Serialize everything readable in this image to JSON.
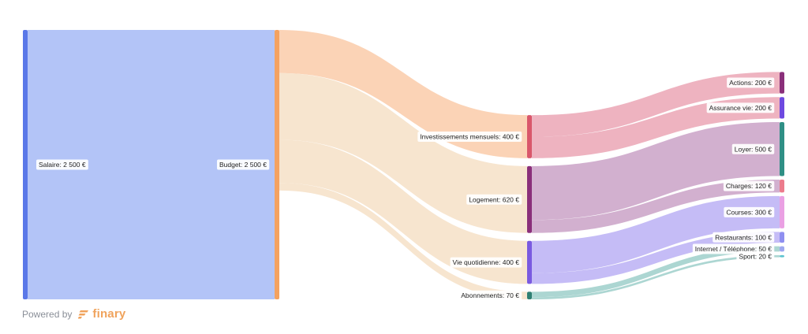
{
  "footer": {
    "powered_by": "Powered by",
    "brand": "finary"
  },
  "chart_data": {
    "type": "sankey",
    "currency": "€",
    "nodes": [
      {
        "id": "salaire",
        "label": "Salaire: 2 500 €",
        "value": 2500,
        "column": 0,
        "color": "#5a78e8"
      },
      {
        "id": "budget",
        "label": "Budget: 2 500 €",
        "value": 2500,
        "column": 1,
        "color": "#f4a261"
      },
      {
        "id": "invest",
        "label": "Investissements mensuels: 400 €",
        "value": 400,
        "column": 2,
        "color": "#d9576b"
      },
      {
        "id": "logement",
        "label": "Logement: 620 €",
        "value": 620,
        "column": 2,
        "color": "#8a2f7a"
      },
      {
        "id": "vie",
        "label": "Vie quotidienne: 400 €",
        "value": 400,
        "column": 2,
        "color": "#7a5ae0"
      },
      {
        "id": "abos",
        "label": "Abonnements: 70 €",
        "value": 70,
        "column": 2,
        "color": "#2f7f73"
      },
      {
        "id": "actions",
        "label": "Actions: 200 €",
        "value": 200,
        "column": 3,
        "color": "#8a2f7a"
      },
      {
        "id": "assurance",
        "label": "Assurance vie: 200 €",
        "value": 200,
        "column": 3,
        "color": "#6e49e0"
      },
      {
        "id": "loyer",
        "label": "Loyer: 500 €",
        "value": 500,
        "column": 3,
        "color": "#2f8f85"
      },
      {
        "id": "charges",
        "label": "Charges: 120 €",
        "value": 120,
        "column": 3,
        "color": "#ec7b8c"
      },
      {
        "id": "courses",
        "label": "Courses: 300 €",
        "value": 300,
        "column": 3,
        "color": "#eaa0e3"
      },
      {
        "id": "restaurants",
        "label": "Restaurants: 100 €",
        "value": 100,
        "column": 3,
        "color": "#8f8ff0"
      },
      {
        "id": "internet",
        "label": "Internet / Téléphone: 50 €",
        "value": 50,
        "column": 3,
        "color": "#9ea8ef"
      },
      {
        "id": "sport",
        "label": "Sport: 20 €",
        "value": 20,
        "column": 3,
        "color": "#5ec4cf"
      }
    ],
    "links": [
      {
        "source": "salaire",
        "target": "budget",
        "value": 2500,
        "color": "#b3c4f7"
      },
      {
        "source": "budget",
        "target": "invest",
        "value": 400,
        "color": "#fbd3b6"
      },
      {
        "source": "budget",
        "target": "logement",
        "value": 620,
        "color": "#f7e5cf"
      },
      {
        "source": "budget",
        "target": "vie",
        "value": 400,
        "color": "#f7e5cf"
      },
      {
        "source": "budget",
        "target": "abos",
        "value": 70,
        "color": "#f7e5cf"
      },
      {
        "source": "invest",
        "target": "actions",
        "value": 200,
        "color": "#eeb3c0"
      },
      {
        "source": "invest",
        "target": "assurance",
        "value": 200,
        "color": "#eeb3c0"
      },
      {
        "source": "logement",
        "target": "loyer",
        "value": 500,
        "color": "#d2b0cf"
      },
      {
        "source": "logement",
        "target": "charges",
        "value": 120,
        "color": "#d2b0cf"
      },
      {
        "source": "vie",
        "target": "courses",
        "value": 300,
        "color": "#c5bcf6"
      },
      {
        "source": "vie",
        "target": "restaurants",
        "value": 100,
        "color": "#c5bcf6"
      },
      {
        "source": "abos",
        "target": "internet",
        "value": 50,
        "color": "#acd6d2"
      },
      {
        "source": "abos",
        "target": "sport",
        "value": 20,
        "color": "#acd6d2"
      }
    ]
  }
}
